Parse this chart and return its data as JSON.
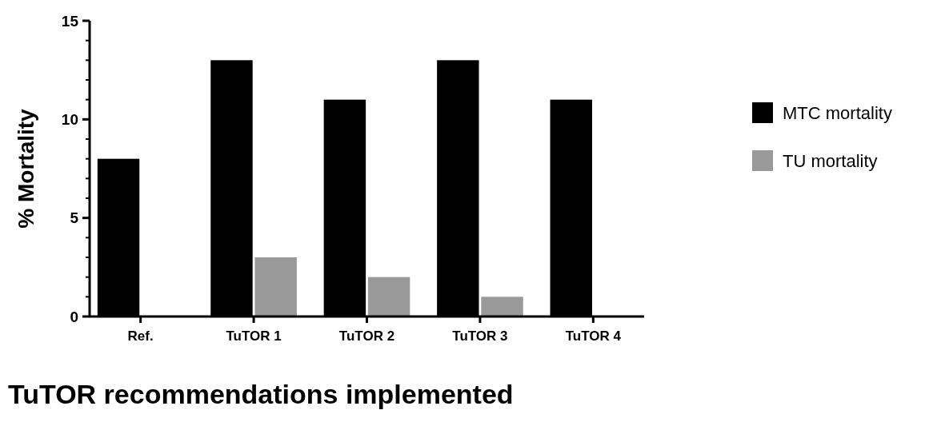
{
  "chart_data": {
    "type": "bar",
    "xlabel": "TuTOR recommendations implemented",
    "ylabel": "% Mortality",
    "categories": [
      "Ref.",
      "TuTOR 1",
      "TuTOR 2",
      "TuTOR 3",
      "TuTOR 4"
    ],
    "series": [
      {
        "name": "MTC mortality",
        "color": "#000000",
        "values": [
          8,
          13,
          11,
          13,
          11
        ]
      },
      {
        "name": "TU mortality",
        "color": "#999999",
        "values": [
          0,
          3,
          2,
          1,
          0
        ]
      }
    ],
    "ylim": [
      0,
      15
    ],
    "yticks": [
      0,
      5,
      10,
      15
    ],
    "legend": "right",
    "grid": false
  }
}
